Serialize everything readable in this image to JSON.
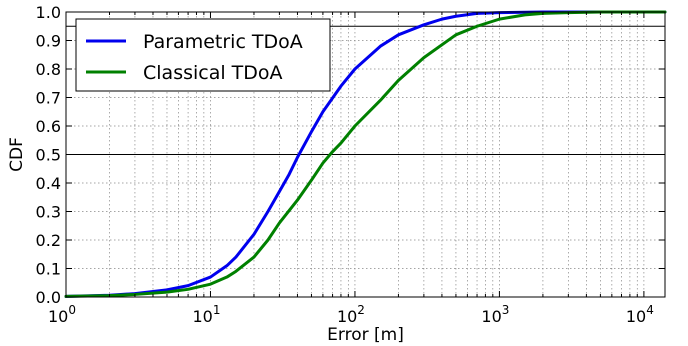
{
  "chart_data": {
    "type": "line",
    "title": "",
    "xlabel": "Error [m]",
    "ylabel": "CDF",
    "xscale": "log",
    "xlim": [
      1,
      14000
    ],
    "ylim": [
      0,
      1.0
    ],
    "grid": true,
    "grid_style": "dotted",
    "xticks": [
      {
        "value": 1,
        "base": "10",
        "exp": "0"
      },
      {
        "value": 10,
        "base": "10",
        "exp": "1"
      },
      {
        "value": 100,
        "base": "10",
        "exp": "2"
      },
      {
        "value": 1000,
        "base": "10",
        "exp": "3"
      },
      {
        "value": 10000,
        "base": "10",
        "exp": "4"
      }
    ],
    "yticks": [
      "0.0",
      "0.1",
      "0.2",
      "0.3",
      "0.4",
      "0.5",
      "0.6",
      "0.7",
      "0.8",
      "0.9",
      "1.0"
    ],
    "reference_lines": [
      0.5,
      0.95
    ],
    "legend_position": "upper-left",
    "series": [
      {
        "name": "Parametric TDoA",
        "color": "#0000ee",
        "points": [
          [
            1,
            0.002
          ],
          [
            2,
            0.006
          ],
          [
            3,
            0.012
          ],
          [
            5,
            0.025
          ],
          [
            7,
            0.04
          ],
          [
            10,
            0.07
          ],
          [
            13,
            0.11
          ],
          [
            15,
            0.14
          ],
          [
            20,
            0.22
          ],
          [
            25,
            0.3
          ],
          [
            30,
            0.37
          ],
          [
            35,
            0.43
          ],
          [
            40,
            0.49
          ],
          [
            50,
            0.58
          ],
          [
            60,
            0.65
          ],
          [
            80,
            0.74
          ],
          [
            100,
            0.8
          ],
          [
            150,
            0.88
          ],
          [
            200,
            0.92
          ],
          [
            300,
            0.955
          ],
          [
            400,
            0.975
          ],
          [
            500,
            0.985
          ],
          [
            700,
            0.995
          ],
          [
            1000,
            0.998
          ],
          [
            2000,
            1.0
          ],
          [
            14000,
            1.0
          ]
        ]
      },
      {
        "name": "Classical TDoA",
        "color": "#008000",
        "points": [
          [
            1,
            0.002
          ],
          [
            2,
            0.005
          ],
          [
            3,
            0.009
          ],
          [
            5,
            0.017
          ],
          [
            7,
            0.027
          ],
          [
            10,
            0.045
          ],
          [
            13,
            0.07
          ],
          [
            15,
            0.09
          ],
          [
            20,
            0.14
          ],
          [
            25,
            0.2
          ],
          [
            30,
            0.26
          ],
          [
            40,
            0.34
          ],
          [
            50,
            0.41
          ],
          [
            60,
            0.47
          ],
          [
            70,
            0.51
          ],
          [
            80,
            0.54
          ],
          [
            100,
            0.6
          ],
          [
            150,
            0.69
          ],
          [
            200,
            0.76
          ],
          [
            300,
            0.84
          ],
          [
            500,
            0.92
          ],
          [
            700,
            0.95
          ],
          [
            1000,
            0.975
          ],
          [
            1500,
            0.99
          ],
          [
            2000,
            0.995
          ],
          [
            3000,
            0.998
          ],
          [
            5000,
            1.0
          ],
          [
            14000,
            1.0
          ]
        ]
      }
    ]
  }
}
